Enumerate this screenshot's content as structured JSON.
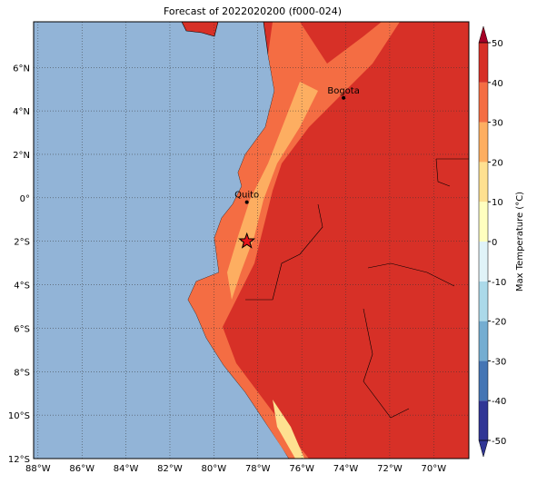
{
  "map": {
    "title": "Forecast of 2022020200 (f000-024)",
    "lonlim": [
      -88.2,
      -68.4
    ],
    "latlim": [
      -12,
      8.1
    ],
    "lonticks": [
      {
        "value": -88,
        "label": "88°W"
      },
      {
        "value": -86,
        "label": "86°W"
      },
      {
        "value": -84,
        "label": "84°W"
      },
      {
        "value": -82,
        "label": "82°W"
      },
      {
        "value": -80,
        "label": "80°W"
      },
      {
        "value": -78,
        "label": "78°W"
      },
      {
        "value": -76,
        "label": "76°W"
      },
      {
        "value": -74,
        "label": "74°W"
      },
      {
        "value": -72,
        "label": "72°W"
      },
      {
        "value": -70,
        "label": "70°W"
      }
    ],
    "latticks": [
      {
        "value": -12,
        "label": "12°S"
      },
      {
        "value": -10,
        "label": "10°S"
      },
      {
        "value": -8,
        "label": "8°S"
      },
      {
        "value": -6,
        "label": "6°S"
      },
      {
        "value": -4,
        "label": "4°S"
      },
      {
        "value": -2,
        "label": "2°S"
      },
      {
        "value": 0,
        "label": "0°"
      },
      {
        "value": 2,
        "label": "2°N"
      },
      {
        "value": 4,
        "label": "4°N"
      },
      {
        "value": 6,
        "label": "6°N"
      }
    ],
    "cities": [
      {
        "name": "Quito",
        "lon": -78.5,
        "lat": -0.2
      },
      {
        "name": "Bogota",
        "lon": -74.1,
        "lat": 4.6
      }
    ],
    "marker": {
      "lon": -78.5,
      "lat": -2
    },
    "colorbar": {
      "label": "Max Temperature (°C)",
      "ticks": [
        -50,
        -40,
        -30,
        -20,
        -10,
        0,
        10,
        20,
        30,
        40,
        50
      ],
      "colors": [
        "#313695",
        "#4575b4",
        "#74add1",
        "#abd9e9",
        "#e0f3f8",
        "#ffffbf",
        "#fee090",
        "#fdae61",
        "#f46d43",
        "#d73027",
        "#a50026"
      ]
    }
  }
}
